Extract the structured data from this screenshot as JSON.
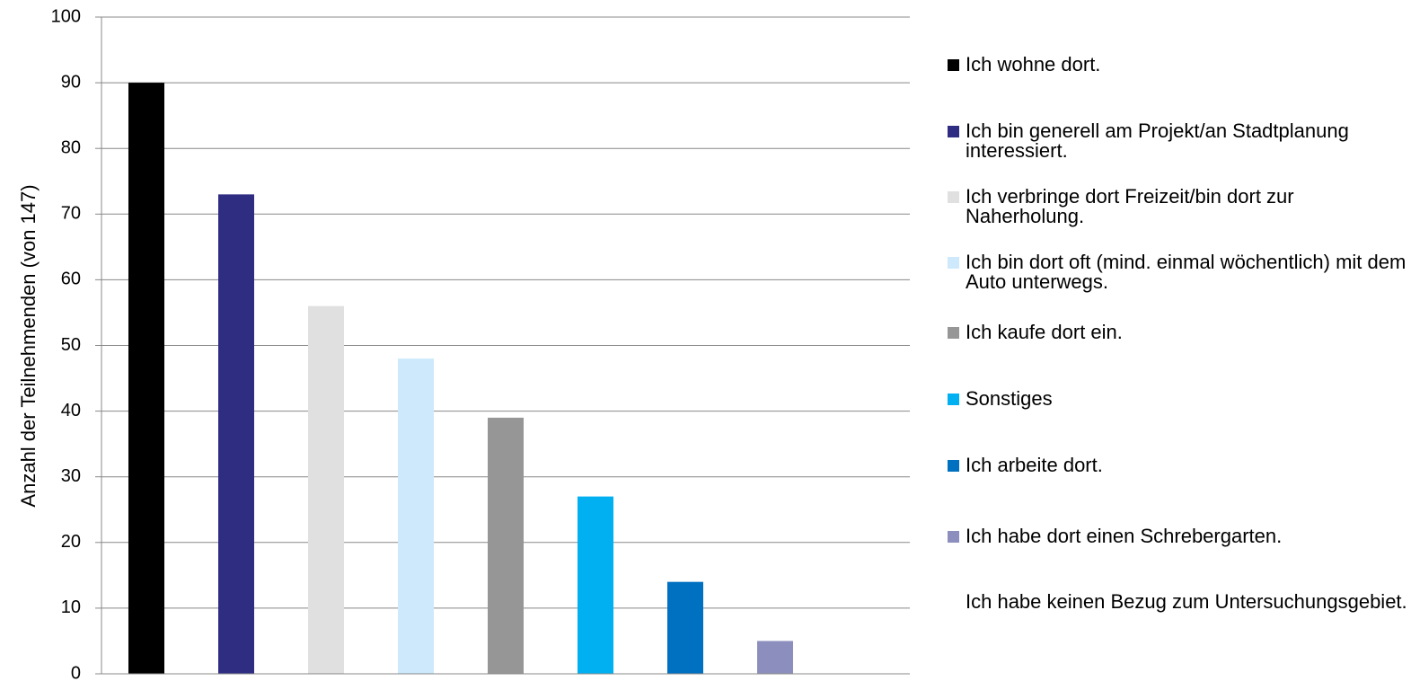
{
  "chart_data": {
    "type": "bar",
    "ylabel": "Anzahl der Teilnehmenden (von 147)",
    "ylim": [
      0,
      100
    ],
    "yticks": [
      0,
      10,
      20,
      30,
      40,
      50,
      60,
      70,
      80,
      90,
      100
    ],
    "grid": true,
    "legend": "right",
    "series": [
      {
        "name": "Ich wohne dort.",
        "color": "#000000",
        "values": [
          90
        ]
      },
      {
        "name": "Ich bin generell am Projekt/an Stadtplanung interessiert.",
        "color": "#2e2d82",
        "values": [
          73
        ]
      },
      {
        "name": "Ich verbringe dort Freizeit/bin dort zur Naherholung.",
        "color": "#e0e0e0",
        "values": [
          56
        ]
      },
      {
        "name": "Ich bin dort oft (mind. einmal wöchentlich) mit dem Auto unterwegs.",
        "color": "#cde9fb",
        "values": [
          48
        ]
      },
      {
        "name": "Ich kaufe dort ein.",
        "color": "#969696",
        "values": [
          39
        ]
      },
      {
        "name": "Sonstiges",
        "color": "#00b0f0",
        "values": [
          27
        ]
      },
      {
        "name": "Ich arbeite dort.",
        "color": "#0070c0",
        "values": [
          14
        ]
      },
      {
        "name": "Ich habe dort einen Schrebergarten.",
        "color": "#8c8fbd",
        "values": [
          5
        ]
      },
      {
        "name": "Ich habe keinen Bezug zum Untersuchungsgebiet.",
        "color": "#ffffff",
        "values": [
          0
        ]
      }
    ]
  }
}
